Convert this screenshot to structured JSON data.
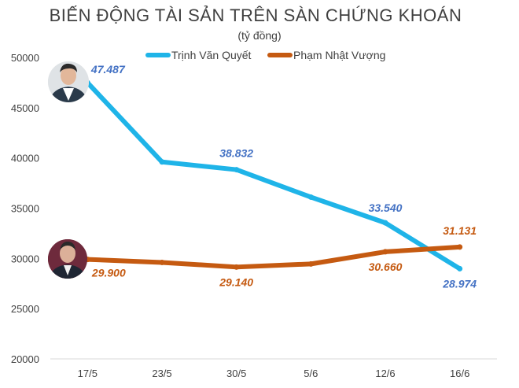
{
  "chart_data": {
    "type": "line",
    "title": "BIẾN ĐỘNG TÀI SẢN TRÊN SÀN CHỨNG KHOÁN",
    "subtitle": "(tỷ đồng)",
    "categories": [
      "17/5",
      "23/5",
      "30/5",
      "5/6",
      "12/6",
      "16/6"
    ],
    "ylim": [
      20000,
      50000
    ],
    "yticks": [
      20000,
      25000,
      30000,
      35000,
      40000,
      45000,
      50000
    ],
    "ytick_labels": [
      "20000",
      "25000",
      "30000",
      "35000",
      "40000",
      "45000",
      "50000"
    ],
    "grid": false,
    "legend_position": "top-center",
    "series": [
      {
        "name": "Trịnh Văn Quyết",
        "color": "#1fb4e8",
        "label_color": "#4472c4",
        "values": [
          47487,
          39600,
          38832,
          36100,
          33540,
          28974
        ],
        "data_labels": [
          "47.487",
          "",
          "38.832",
          "",
          "33.540",
          "28.974"
        ]
      },
      {
        "name": "Phạm Nhật Vượng",
        "color": "#c55a11",
        "label_color": "#c55a11",
        "values": [
          29900,
          29600,
          29140,
          29450,
          30660,
          31131
        ],
        "data_labels": [
          "29.900",
          "",
          "29.140",
          "",
          "30.660",
          "31.131"
        ]
      }
    ]
  }
}
